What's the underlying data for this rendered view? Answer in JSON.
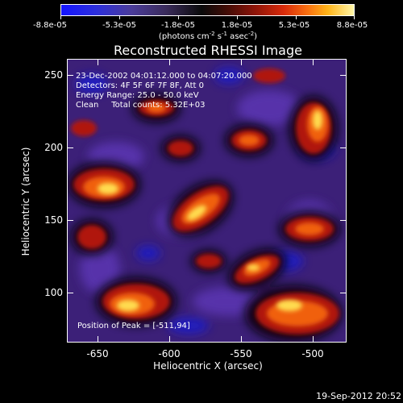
{
  "colorbar": {
    "tick_labels": [
      "-8.8e-05",
      "-5.3e-05",
      "-1.8e-05",
      "1.8e-05",
      "5.3e-05",
      "8.8e-05"
    ],
    "unit_label": "(photons cm",
    "unit_exp1": "-2",
    "unit_mid1": " s",
    "unit_exp2": "-1",
    "unit_mid2": " asec",
    "unit_exp3": "-2",
    "unit_end": ")"
  },
  "title": "Reconstructed RHESSI Image",
  "info": {
    "line1": "23-Dec-2002 04:01:12.000 to 04:07:20.000",
    "line2": "Detectors: 4F 5F 6F 7F 8F, Att 0",
    "line3": "Energy Range: 25.0 - 50.0 keV",
    "line4": "Clean     Total counts: 5.32E+03",
    "peak": "Position of Peak = [-511,94]"
  },
  "axes": {
    "xlabel": "Heliocentric X (arcsec)",
    "ylabel": "Heliocentric Y (arcsec)",
    "x_ticks": [
      "-650",
      "-600",
      "-550",
      "-500"
    ],
    "y_ticks": [
      "250",
      "200",
      "150",
      "100"
    ],
    "x_range": [
      -672,
      -477
    ],
    "y_range": [
      67,
      263
    ]
  },
  "timestamp": "19-Sep-2012 20:52",
  "colors": {
    "background": "#000000",
    "neutral": "#3a1f7a",
    "negative": "#1a1ad8",
    "positive_mid": "#e0300a",
    "positive_peak": "#ffe070"
  }
}
